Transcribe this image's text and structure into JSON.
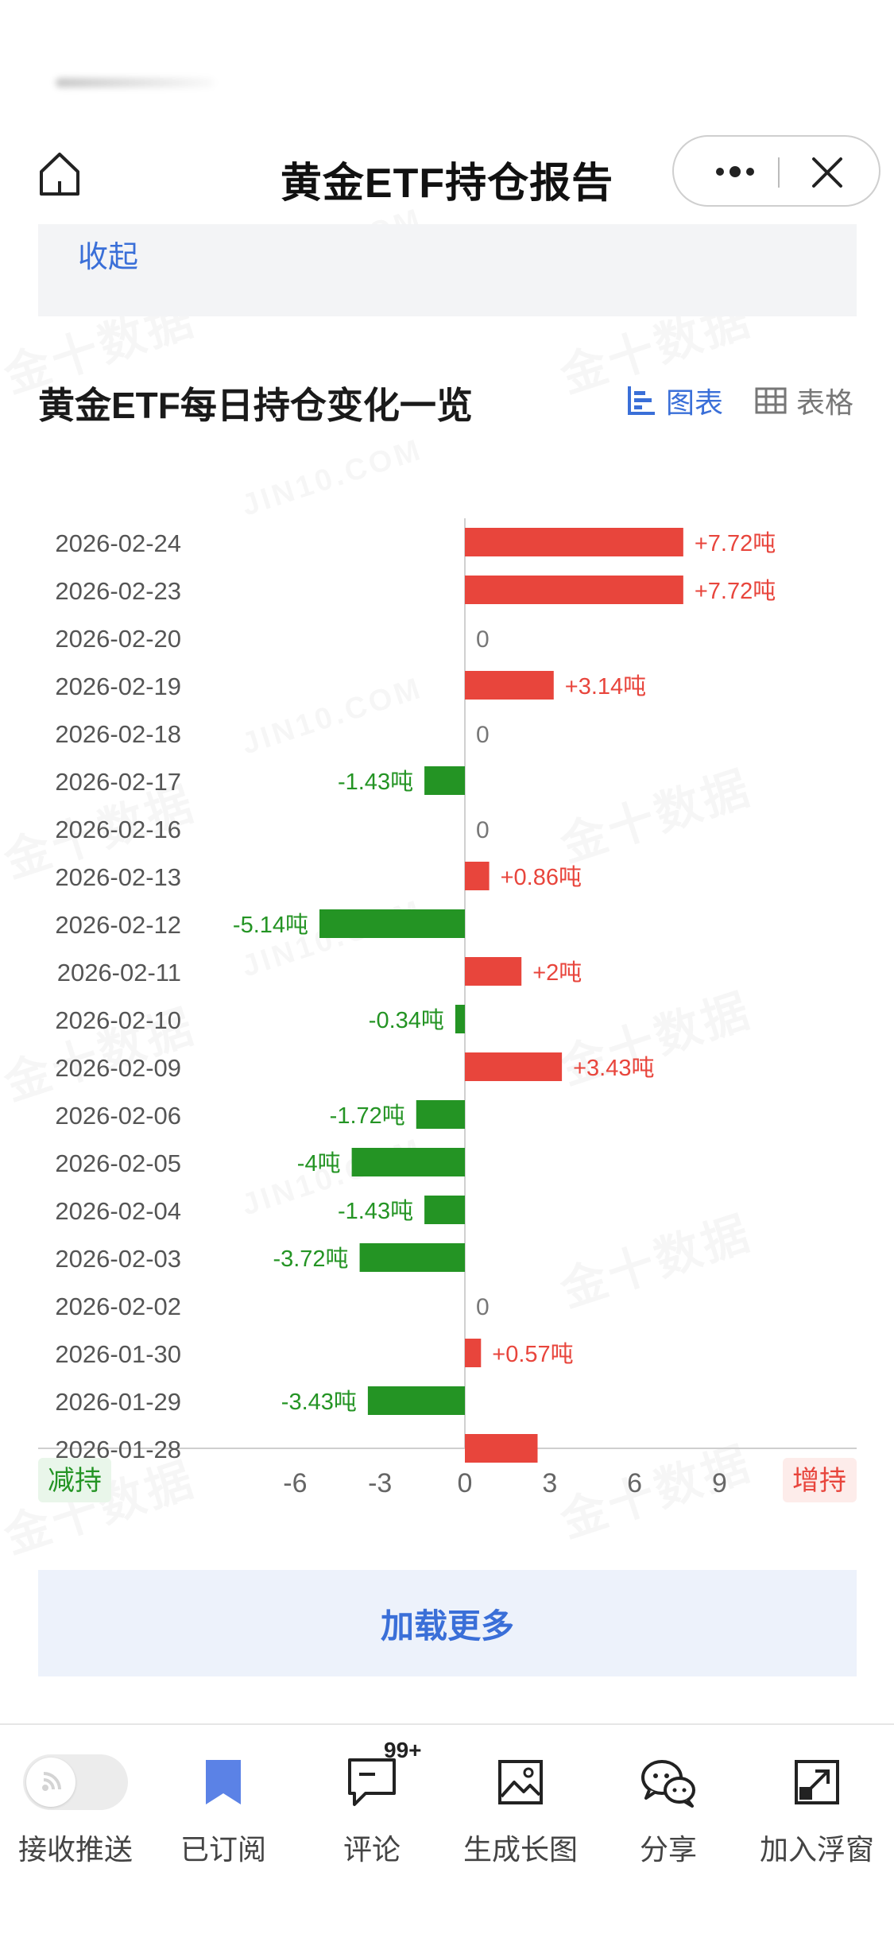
{
  "nav": {
    "title": "黄金ETF持仓报告"
  },
  "collapse_label": "收起",
  "section": {
    "title": "黄金ETF每日持仓变化一览",
    "toggle_chart": "图表",
    "toggle_table": "表格"
  },
  "watermark": {
    "domain": "JIN10.COM",
    "cn": "金十数据"
  },
  "chart_data": {
    "type": "bar",
    "orientation": "horizontal",
    "categories": [
      "2026-02-24",
      "2026-02-23",
      "2026-02-20",
      "2026-02-19",
      "2026-02-18",
      "2026-02-17",
      "2026-02-16",
      "2026-02-13",
      "2026-02-12",
      "2026-02-11",
      "2026-02-10",
      "2026-02-09",
      "2026-02-06",
      "2026-02-05",
      "2026-02-04",
      "2026-02-03",
      "2026-02-02",
      "2026-01-30",
      "2026-01-29",
      "2026-01-28"
    ],
    "values": [
      7.72,
      7.72,
      0,
      3.14,
      0,
      -1.43,
      0,
      0.86,
      -5.14,
      2,
      -0.34,
      3.43,
      -1.72,
      -4,
      -1.43,
      -3.72,
      0,
      0.57,
      -3.43,
      2.57
    ],
    "value_labels": [
      "+7.72吨",
      "+7.72吨",
      "0",
      "+3.14吨",
      "0",
      "-1.43吨",
      "0",
      "+0.86吨",
      "-5.14吨",
      "+2吨",
      "-0.34吨",
      "+3.43吨",
      "-1.72吨",
      "-4吨",
      "-1.43吨",
      "-3.72吨",
      "0",
      "+0.57吨",
      "-3.43吨",
      ""
    ],
    "xlim": [
      -8,
      12
    ],
    "xticks": [
      "-6",
      "-3",
      "0",
      "3",
      "6",
      "9"
    ],
    "xtick_values": [
      -6,
      -3,
      0,
      3,
      6,
      9
    ],
    "left_label": "减持",
    "right_label": "增持",
    "colors": {
      "positive": "#e8453c",
      "negative": "#249424",
      "zero_label": "#777777"
    }
  },
  "load_more": "加载更多",
  "bottom_bar": {
    "tabs": [
      {
        "label": "接收推送",
        "icon": "push-toggle"
      },
      {
        "label": "已订阅",
        "icon": "bookmark-icon"
      },
      {
        "label": "评论",
        "icon": "comment-icon",
        "badge": "99+"
      },
      {
        "label": "生成长图",
        "icon": "image-icon"
      },
      {
        "label": "分享",
        "icon": "wechat-icon"
      },
      {
        "label": "加入浮窗",
        "icon": "floating-window-icon"
      }
    ]
  }
}
